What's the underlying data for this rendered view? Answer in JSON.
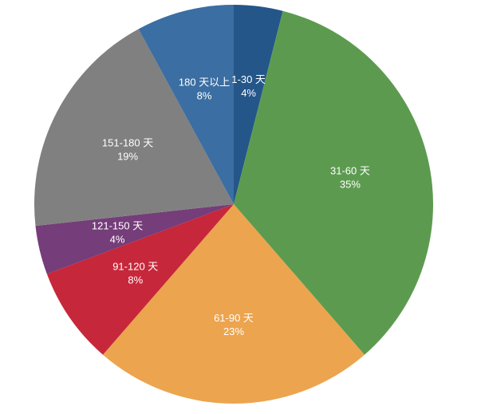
{
  "chart_data": {
    "type": "pie",
    "title": "",
    "start_angle_deg": 0,
    "direction": "clockwise",
    "slices": [
      {
        "label": "1-30 天",
        "value": 4,
        "percent_label": "4%",
        "color": "#245689"
      },
      {
        "label": "31-60 天",
        "value": 35,
        "percent_label": "35%",
        "color": "#5c9b4f"
      },
      {
        "label": "61-90 天",
        "value": 23,
        "percent_label": "23%",
        "color": "#eca44f"
      },
      {
        "label": "91-120 天",
        "value": 8,
        "percent_label": "8%",
        "color": "#c7273a"
      },
      {
        "label": "121-150 天",
        "value": 4,
        "percent_label": "4%",
        "color": "#753d79"
      },
      {
        "label": "151-180 天",
        "value": 19,
        "percent_label": "19%",
        "color": "#808080"
      },
      {
        "label": "180 天以上",
        "value": 8,
        "percent_label": "8%",
        "color": "#3b6ea2"
      }
    ]
  }
}
